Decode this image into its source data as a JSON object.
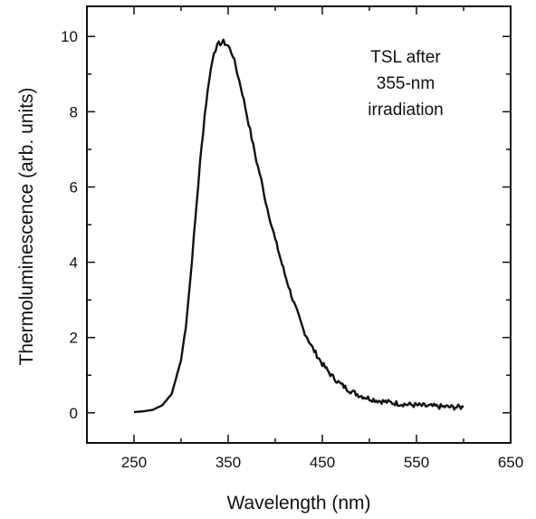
{
  "chart_data": {
    "type": "line",
    "title": "",
    "xlabel": "Wavelength (nm)",
    "ylabel": "Thermoluminescence (arb. units)",
    "xlim": [
      200,
      650
    ],
    "ylim": [
      -0.8,
      10.8
    ],
    "xticks": [
      250,
      350,
      450,
      550,
      650
    ],
    "yticks": [
      0,
      2,
      4,
      6,
      8,
      10
    ],
    "grid": false,
    "annotation": [
      "TSL after",
      "355-nm",
      "irradiation"
    ],
    "series": [
      {
        "x": [
          250,
          260,
          270,
          280,
          290,
          300,
          305,
          310,
          315,
          320,
          325,
          330,
          335,
          340,
          345,
          350,
          355,
          360,
          365,
          370,
          375,
          380,
          385,
          390,
          395,
          400,
          410,
          420,
          430,
          440,
          450,
          460,
          470,
          480,
          490,
          500,
          510,
          520,
          530,
          540,
          550,
          560,
          570,
          580,
          590,
          600
        ],
        "y": [
          0.02,
          0.04,
          0.08,
          0.2,
          0.5,
          1.4,
          2.3,
          3.6,
          5.1,
          6.6,
          7.9,
          8.9,
          9.6,
          9.8,
          9.85,
          9.75,
          9.5,
          9.0,
          8.5,
          7.9,
          7.3,
          6.7,
          6.2,
          5.6,
          5.1,
          4.6,
          3.7,
          2.9,
          2.2,
          1.7,
          1.3,
          0.98,
          0.75,
          0.58,
          0.46,
          0.38,
          0.32,
          0.28,
          0.25,
          0.22,
          0.2,
          0.18,
          0.17,
          0.16,
          0.15,
          0.15
        ]
      }
    ]
  }
}
